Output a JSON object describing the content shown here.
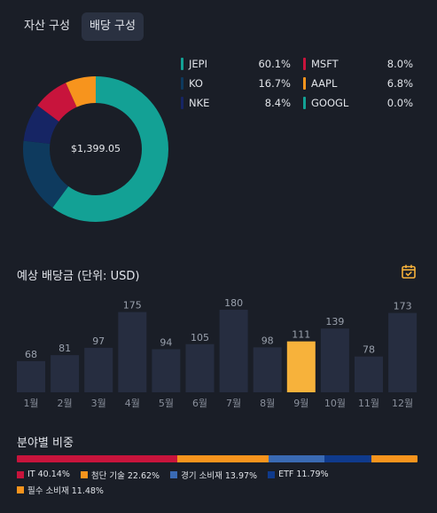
{
  "tabs": [
    {
      "label": "자산 구성",
      "active": false
    },
    {
      "label": "배당 구성",
      "active": true
    }
  ],
  "donut": {
    "total": "$1,399.05",
    "slices": [
      {
        "name": "JEPI",
        "value": 60.1,
        "color": "#13a195"
      },
      {
        "name": "KO",
        "value": 16.7,
        "color": "#0e3a5e"
      },
      {
        "name": "NKE",
        "value": 8.4,
        "color": "#162564"
      },
      {
        "name": "MSFT",
        "value": 8.0,
        "color": "#c8143c"
      },
      {
        "name": "AAPL",
        "value": 6.8,
        "color": "#f7941d"
      },
      {
        "name": "GOOGL",
        "value": 0.0,
        "color": "#13a195"
      }
    ]
  },
  "legend": [
    {
      "name": "JEPI",
      "pct": "60.1%",
      "color": "#13a195"
    },
    {
      "name": "MSFT",
      "pct": "8.0%",
      "color": "#c8143c"
    },
    {
      "name": "KO",
      "pct": "16.7%",
      "color": "#0e3a5e"
    },
    {
      "name": "AAPL",
      "pct": "6.8%",
      "color": "#f7941d"
    },
    {
      "name": "NKE",
      "pct": "8.4%",
      "color": "#162564"
    },
    {
      "name": "GOOGL",
      "pct": "0.0%",
      "color": "#13a195"
    }
  ],
  "dividend_title": "예상 배당금 (단위: USD)",
  "chart_data": {
    "type": "bar",
    "categories": [
      "1월",
      "2월",
      "3월",
      "4월",
      "5월",
      "6월",
      "7월",
      "8월",
      "9월",
      "10월",
      "11월",
      "12월"
    ],
    "values": [
      68,
      81,
      97,
      175,
      94,
      105,
      180,
      98,
      111,
      139,
      78,
      173
    ],
    "highlight_index": 8,
    "bar_color": "#262d40",
    "highlight_color": "#f7b23b"
  },
  "sector_title": "분야별 비중",
  "sectors": [
    {
      "label": "IT 40.14%",
      "value": 40.14,
      "color": "#c8143c"
    },
    {
      "label": "첨단 기술 22.62%",
      "value": 22.62,
      "color": "#f7941d"
    },
    {
      "label": "경기 소비재 13.97%",
      "value": 13.97,
      "color": "#3a6ab3"
    },
    {
      "label": "ETF 11.79%",
      "value": 11.79,
      "color": "#0f3a8c"
    },
    {
      "label": "필수 소비재 11.48%",
      "value": 11.48,
      "color": "#f7941d"
    }
  ]
}
